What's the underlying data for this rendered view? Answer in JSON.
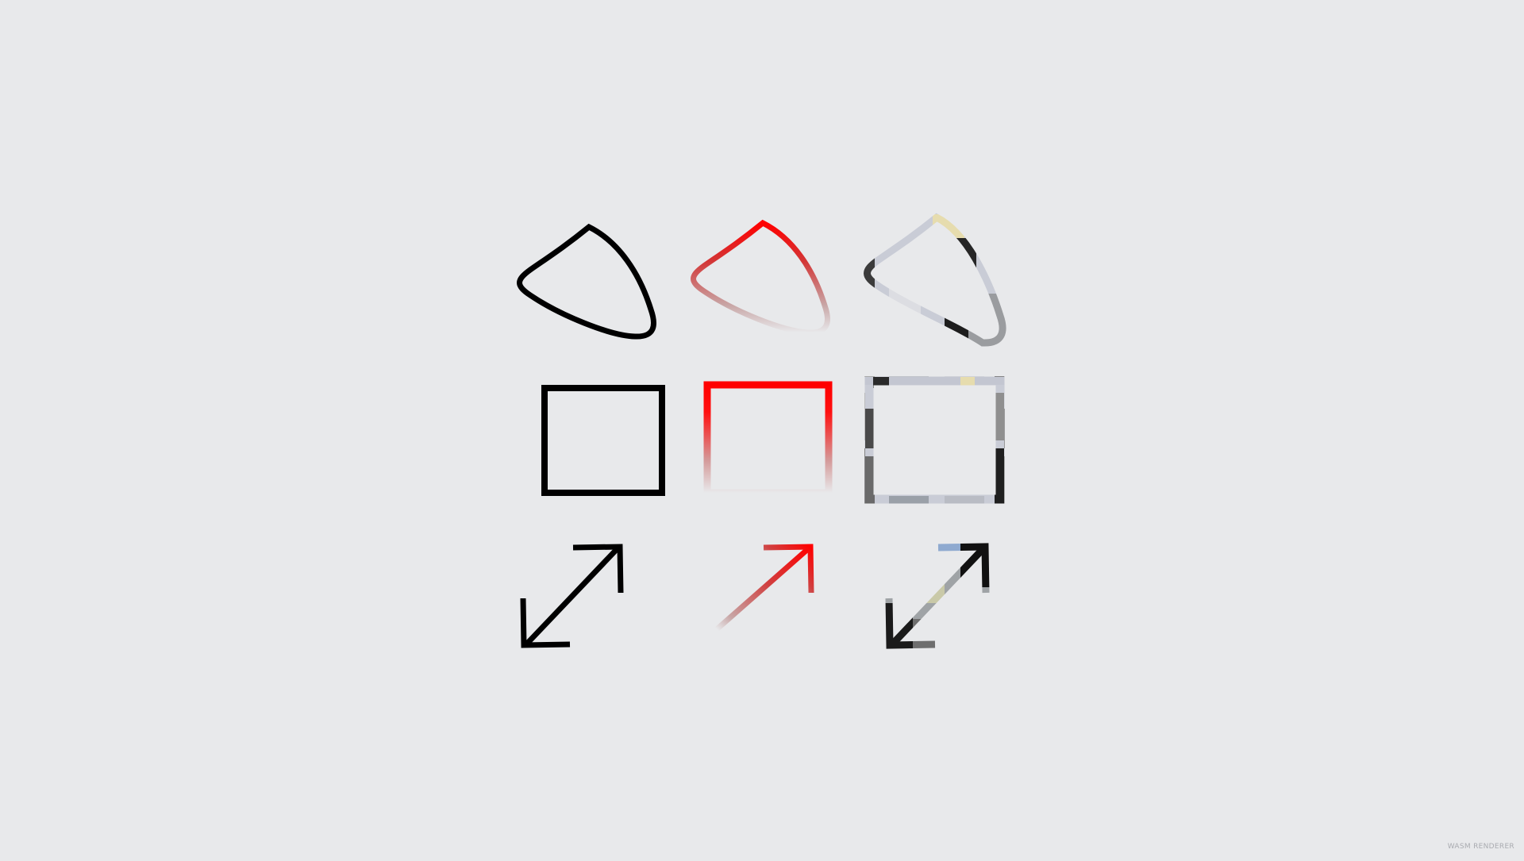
{
  "footer": {
    "renderer_label": "WASM RENDERER"
  },
  "colors": {
    "background": "#e8e9eb",
    "solid_stroke": "#000000",
    "gradient_start": "#ff0000",
    "gradient_mid": "#c8a0a0",
    "gradient_end": "#e8e9eb",
    "image_fill_light": "#c9ccd6",
    "image_fill_dark": "#2a2a2a",
    "image_fill_yellow": "#e6dcae",
    "image_fill_blue": "#8faad0"
  },
  "grid": {
    "rows": [
      "curve-shape",
      "rectangle-shape",
      "double-arrow-shape"
    ],
    "columns": [
      "solid-stroke",
      "gradient-stroke",
      "image-pattern-stroke"
    ]
  }
}
